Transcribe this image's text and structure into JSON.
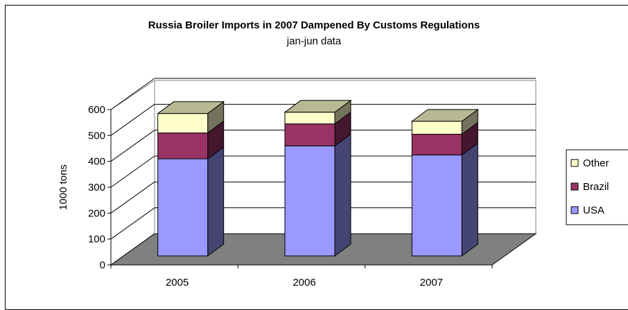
{
  "chart_data": {
    "type": "bar",
    "stacked": true,
    "three_d": true,
    "title": "Russia Broiler Imports in 2007 Dampened By Customs Regulations",
    "subtitle": "jan-jun data",
    "ylabel": "1000 tons",
    "xlabel": "",
    "ylim": [
      0,
      600
    ],
    "yticks": [
      "0",
      "100",
      "200",
      "300",
      "400",
      "500",
      "600"
    ],
    "categories": [
      "2005",
      "2006",
      "2007"
    ],
    "series": [
      {
        "name": "USA",
        "values": [
          375,
          425,
          390
        ],
        "color": "#9999ff"
      },
      {
        "name": "Brazil",
        "values": [
          100,
          85,
          80
        ],
        "color": "#993366"
      },
      {
        "name": "Other",
        "values": [
          75,
          45,
          50
        ],
        "color": "#ffffcc"
      }
    ],
    "legend_position": "right",
    "legend_order": [
      "Other",
      "Brazil",
      "USA"
    ],
    "grid": true,
    "floor_color": "#808080"
  }
}
